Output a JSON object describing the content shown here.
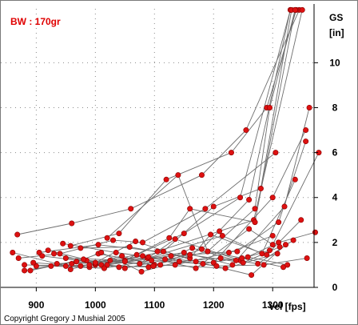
{
  "chart_data": {
    "type": "scatter",
    "subtitle": "BW : 170gr",
    "xlabel": "Vel  [fps]",
    "ylabel": "GS\n[in]",
    "y_axis_side": "right",
    "xlim": [
      840,
      1370
    ],
    "ylim": [
      0,
      12.4
    ],
    "x_ticks": [
      900,
      1000,
      1100,
      1200,
      1300
    ],
    "y_ticks": [
      0,
      2,
      4,
      6,
      8,
      10
    ],
    "grid": true,
    "grid_style": "dotted",
    "copyright": "Copyright  Gregory J Mushial  2005",
    "colors": {
      "points": "#dd1111",
      "lines": "#6e6e6e",
      "grid": "#8a8a8a",
      "subtitle": "#e00000"
    },
    "series": [
      {
        "x": [
          868,
          960,
          1060,
          1180,
          1255,
          1345
        ],
        "y": [
          2.35,
          2.85,
          3.5,
          5.0,
          7.0,
          12.35
        ]
      },
      {
        "x": [
          958,
          1040,
          1120,
          1230,
          1290,
          1340
        ],
        "y": [
          1.85,
          2.4,
          4.8,
          6.0,
          8.0,
          12.35
        ]
      },
      {
        "x": [
          1020,
          1140,
          1190,
          1270,
          1295,
          1338
        ],
        "y": [
          2.2,
          5.0,
          1.6,
          3.5,
          8.0,
          12.35
        ]
      },
      {
        "x": [
          905,
          1005,
          1105,
          1210,
          1268,
          1350
        ],
        "y": [
          1.55,
          1.9,
          1.6,
          2.5,
          3.0,
          12.35
        ]
      },
      {
        "x": [
          880,
          975,
          1070,
          1150,
          1245,
          1330
        ],
        "y": [
          1.0,
          0.95,
          1.45,
          2.4,
          4.0,
          12.35
        ]
      },
      {
        "x": [
          900,
          1000,
          1090,
          1180,
          1260,
          1330
        ],
        "y": [
          0.95,
          1.0,
          0.9,
          1.7,
          3.9,
          12.35
        ]
      },
      {
        "x": [
          930,
          1010,
          1115,
          1200,
          1280,
          1332
        ],
        "y": [
          1.5,
          1.0,
          1.6,
          3.6,
          4.4,
          12.35
        ]
      },
      {
        "x": [
          950,
          1050,
          1125,
          1160,
          1270,
          1338
        ],
        "y": [
          1.3,
          1.2,
          2.2,
          3.5,
          2.9,
          12.35
        ]
      },
      {
        "x": [
          870,
          940,
          1030,
          1080,
          1186,
          1305
        ],
        "y": [
          1.3,
          1.5,
          2.1,
          2.0,
          3.5,
          6.0
        ]
      },
      {
        "x": [
          895,
          990,
          1088,
          1215,
          1282,
          1338
        ],
        "y": [
          1.1,
          0.9,
          1.3,
          2.3,
          1.5,
          4.8
        ]
      },
      {
        "x": [
          1000,
          1090,
          1200,
          1300,
          1356
        ],
        "y": [
          1.05,
          1.35,
          1.1,
          4.0,
          7.0
        ]
      },
      {
        "x": [
          960,
          1050,
          1150,
          1232,
          1320,
          1362
        ],
        "y": [
          1.05,
          1.15,
          1.55,
          1.0,
          3.6,
          8.0
        ]
      },
      {
        "x": [
          990,
          1080,
          1170,
          1260,
          1300,
          1378
        ],
        "y": [
          1.0,
          1.4,
          0.85,
          2.6,
          1.9,
          6.0
        ]
      },
      {
        "x": [
          920,
          1020,
          1128,
          1240,
          1310,
          1356
        ],
        "y": [
          1.65,
          1.0,
          1.4,
          1.6,
          2.9,
          6.5
        ]
      },
      {
        "x": [
          975,
          1058,
          1160,
          1195,
          1290,
          1348
        ],
        "y": [
          1.75,
          1.8,
          1.3,
          2.35,
          1.45,
          3.0
        ]
      },
      {
        "x": [
          985,
          1075,
          1135,
          1245,
          1310,
          1372
        ],
        "y": [
          1.2,
          1.05,
          2.15,
          1.2,
          2.0,
          2.45
        ]
      },
      {
        "x": [
          860,
          950,
          1005,
          1110,
          1220,
          1308
        ],
        "y": [
          1.55,
          0.95,
          1.5,
          1.0,
          0.85,
          1.5
        ]
      },
      {
        "x": [
          890,
          980,
          1050,
          1160,
          1250,
          1312
        ],
        "y": [
          0.75,
          1.25,
          0.85,
          1.45,
          1.1,
          1.8
        ]
      },
      {
        "x": [
          910,
          1000,
          1068,
          1170,
          1264,
          1322
        ],
        "y": [
          1.4,
          1.1,
          2.05,
          1.15,
          0.55,
          1.9
        ]
      },
      {
        "x": [
          935,
          1025,
          1100,
          1190,
          1248,
          1318
        ],
        "y": [
          1.05,
          1.2,
          1.0,
          1.6,
          1.3,
          0.9
        ]
      },
      {
        "x": [
          945,
          1035,
          1118,
          1205,
          1285,
          1358
        ],
        "y": [
          1.95,
          1.55,
          1.25,
          0.95,
          1.0,
          1.3
        ]
      },
      {
        "x": [
          880,
          968,
          1040,
          1135,
          1226,
          1300
        ],
        "y": [
          0.75,
          1.15,
          0.9,
          1.0,
          1.55,
          2.3
        ]
      },
      {
        "x": [
          925,
          1015,
          1095,
          1182,
          1258,
          1325
        ],
        "y": [
          0.95,
          0.85,
          1.2,
          1.05,
          1.35,
          1.0
        ]
      },
      {
        "x": [
          1010,
          1078,
          1142,
          1212,
          1275,
          1335
        ],
        "y": [
          1.55,
          0.7,
          1.15,
          1.3,
          1.05,
          2.1
        ]
      },
      {
        "x": [
          958,
          1045,
          1098,
          1164,
          1238,
          1295
        ],
        "y": [
          0.8,
          1.4,
          0.95,
          1.75,
          1.2,
          1.65
        ]
      }
    ]
  }
}
